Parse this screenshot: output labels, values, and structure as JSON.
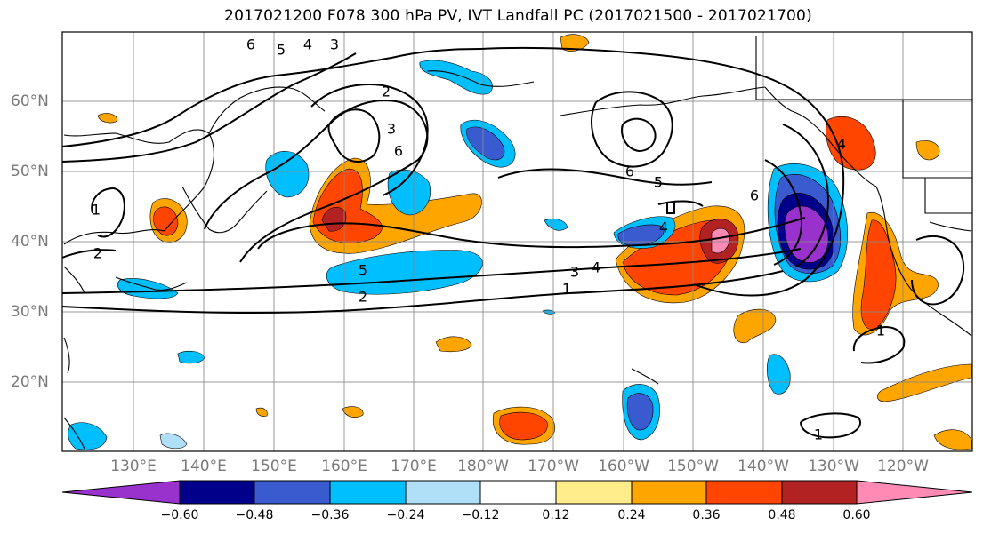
{
  "title": "2017021200 F078 300 hPa PV, IVT Landfall PC (2017021500 - 2017021700)",
  "lat_labels": [
    "60°N",
    "50°N",
    "40°N",
    "30°N",
    "20°N"
  ],
  "lon_labels": [
    "130°E",
    "140°E",
    "150°E",
    "160°E",
    "170°E",
    "180°W",
    "170°W",
    "160°W",
    "150°W",
    "140°W",
    "130°W",
    "120°W"
  ],
  "colorbar": {
    "ticks": [
      "−0.60",
      "−0.48",
      "−0.36",
      "−0.24",
      "−0.12",
      "0.12",
      "0.24",
      "0.36",
      "0.48",
      "0.60"
    ],
    "colors": [
      "#9932cc",
      "#00008b",
      "#3a5bd0",
      "#00bfff",
      "#b0e0f8",
      "#ffffff",
      "#ffec8a",
      "#ffa500",
      "#ff4500",
      "#b22222",
      "#ff8ab4"
    ]
  },
  "contour_labels": [
    "6",
    "5",
    "4",
    "3",
    "2",
    "3",
    "6",
    "1",
    "2",
    "6",
    "5",
    "4",
    "6",
    "4",
    "5",
    "2",
    "3",
    "4",
    "1",
    "1",
    "1"
  ]
}
